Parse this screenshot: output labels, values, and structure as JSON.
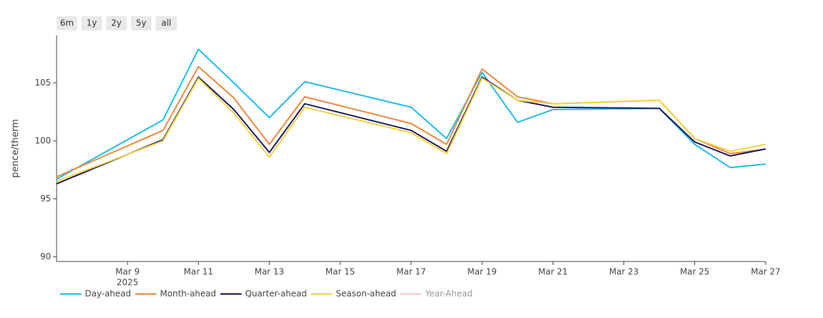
{
  "chart_data": {
    "type": "line",
    "range_buttons": [
      "6m",
      "1y",
      "2y",
      "5y",
      "all"
    ],
    "y_label": "pence/therm",
    "x": [
      "2025-03-07",
      "2025-03-10",
      "2025-03-11",
      "2025-03-12",
      "2025-03-13",
      "2025-03-14",
      "2025-03-17",
      "2025-03-18",
      "2025-03-19",
      "2025-03-20",
      "2025-03-21",
      "2025-03-24",
      "2025-03-25",
      "2025-03-26",
      "2025-03-27"
    ],
    "xlim": [
      "2025-03-07",
      "2025-03-27"
    ],
    "xticks": [
      {
        "value": "2025-03-09",
        "label": "Mar 9"
      },
      {
        "value": "2025-03-11",
        "label": "Mar 11"
      },
      {
        "value": "2025-03-13",
        "label": "Mar 13"
      },
      {
        "value": "2025-03-15",
        "label": "Mar 15"
      },
      {
        "value": "2025-03-17",
        "label": "Mar 17"
      },
      {
        "value": "2025-03-19",
        "label": "Mar 19"
      },
      {
        "value": "2025-03-21",
        "label": "Mar 21"
      },
      {
        "value": "2025-03-23",
        "label": "Mar 23"
      },
      {
        "value": "2025-03-25",
        "label": "Mar 25"
      },
      {
        "value": "2025-03-27",
        "label": "Mar 27"
      }
    ],
    "x_year_label": "2025",
    "ylim": [
      89.6,
      109.1
    ],
    "yticks": [
      90,
      95,
      100,
      105
    ],
    "grid": false,
    "legend": "bottom-left",
    "series": [
      {
        "name": "Day-ahead",
        "color": "#1fbcef",
        "visible": true,
        "values": [
          96.7,
          101.8,
          107.9,
          105.0,
          102.0,
          105.1,
          102.9,
          100.2,
          105.9,
          101.6,
          102.7,
          102.8,
          99.7,
          97.7,
          98.0
        ]
      },
      {
        "name": "Month-ahead",
        "color": "#f0883a",
        "visible": true,
        "values": [
          96.9,
          100.9,
          106.4,
          103.7,
          99.7,
          103.8,
          101.5,
          99.7,
          106.2,
          103.8,
          103.2,
          103.5,
          100.2,
          98.9,
          99.3
        ]
      },
      {
        "name": "Quarter-ahead",
        "color": "#1a1a5e",
        "visible": true,
        "values": [
          96.3,
          100.1,
          105.5,
          102.7,
          99.0,
          103.2,
          100.9,
          99.1,
          105.5,
          103.5,
          102.9,
          102.8,
          99.9,
          98.7,
          99.3
        ]
      },
      {
        "name": "Season-ahead",
        "color": "#f5d33f",
        "visible": true,
        "values": [
          96.5,
          100.0,
          105.4,
          102.4,
          98.6,
          102.9,
          100.7,
          98.9,
          105.4,
          103.5,
          103.2,
          103.5,
          100.2,
          99.1,
          99.7
        ]
      },
      {
        "name": "Year-Ahead",
        "color": "#f4a6a6",
        "visible": false,
        "values": [
          null,
          null,
          null,
          null,
          null,
          null,
          null,
          null,
          null,
          null,
          null,
          null,
          null,
          null,
          null
        ]
      }
    ]
  }
}
